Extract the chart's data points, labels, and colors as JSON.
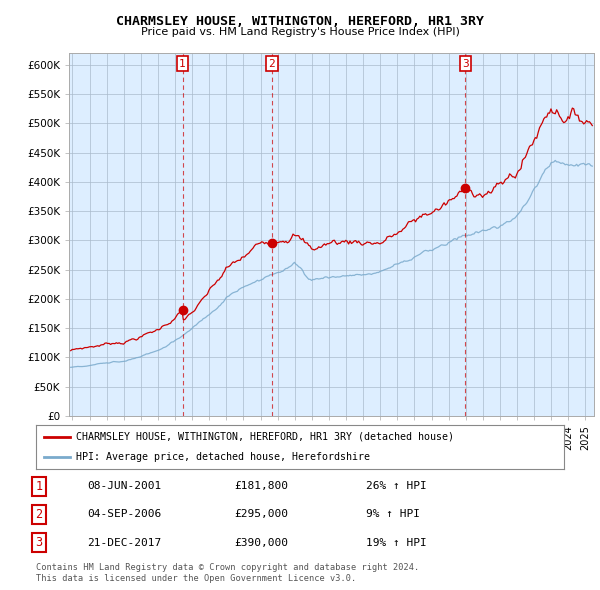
{
  "title": "CHARMSLEY HOUSE, WITHINGTON, HEREFORD, HR1 3RY",
  "subtitle": "Price paid vs. HM Land Registry's House Price Index (HPI)",
  "ylim": [
    0,
    620000
  ],
  "yticks": [
    0,
    50000,
    100000,
    150000,
    200000,
    250000,
    300000,
    350000,
    400000,
    450000,
    500000,
    550000,
    600000
  ],
  "ytick_labels": [
    "£0",
    "£50K",
    "£100K",
    "£150K",
    "£200K",
    "£250K",
    "£300K",
    "£350K",
    "£400K",
    "£450K",
    "£500K",
    "£550K",
    "£600K"
  ],
  "xlim_start": 1994.8,
  "xlim_end": 2025.5,
  "transactions": [
    {
      "num": 1,
      "date": "08-JUN-2001",
      "price": 181800,
      "pct": "26%",
      "year": 2001.44
    },
    {
      "num": 2,
      "date": "04-SEP-2006",
      "price": 295000,
      "pct": "9%",
      "year": 2006.67
    },
    {
      "num": 3,
      "date": "21-DEC-2017",
      "price": 390000,
      "pct": "19%",
      "year": 2017.97
    }
  ],
  "legend_line1": "CHARMSLEY HOUSE, WITHINGTON, HEREFORD, HR1 3RY (detached house)",
  "legend_line2": "HPI: Average price, detached house, Herefordshire",
  "footer1": "Contains HM Land Registry data © Crown copyright and database right 2024.",
  "footer2": "This data is licensed under the Open Government Licence v3.0.",
  "line_color_red": "#cc0000",
  "line_color_blue": "#7aaacc",
  "bg_color": "#ffffff",
  "chart_bg_color": "#ddeeff",
  "grid_color": "#aabbcc",
  "transaction_color": "#cc0000"
}
